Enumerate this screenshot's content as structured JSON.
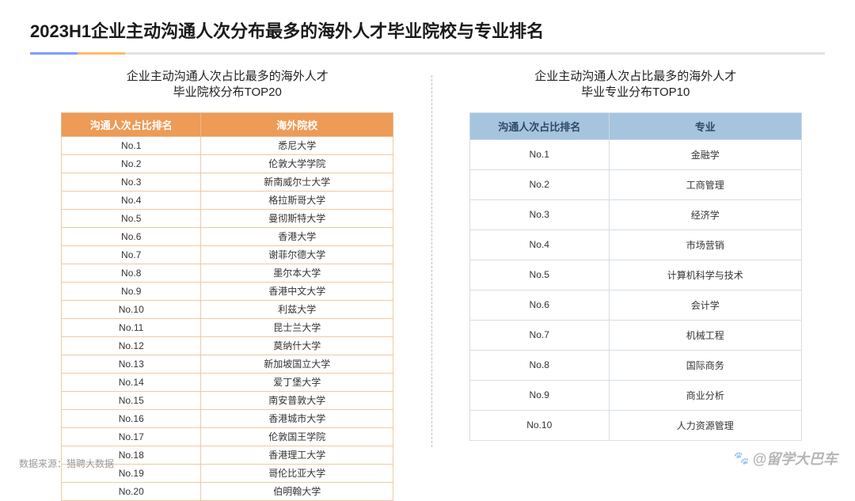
{
  "title": "2023H1企业主动沟通人次分布最多的海外人才毕业院校与专业排名",
  "source_label": "数据来源：猎聘大数据",
  "watermark": "@留学大巴车",
  "colors": {
    "left_header_bg": "#ed9b56",
    "left_border": "#f1c9a2",
    "right_header_bg": "#a7c4de",
    "right_border": "#d7dee6",
    "title_accent_blue": "#2d5bff",
    "title_accent_orange": "#ff8a00"
  },
  "left": {
    "title_l1": "企业主动沟通人次占比最多的海外人才",
    "title_l2": "毕业院校分布TOP20",
    "col_rank": "沟通人次占比排名",
    "col_name": "海外院校",
    "rows": [
      {
        "rank": "No.1",
        "name": "悉尼大学"
      },
      {
        "rank": "No.2",
        "name": "伦敦大学学院"
      },
      {
        "rank": "No.3",
        "name": "新南威尔士大学"
      },
      {
        "rank": "No.4",
        "name": "格拉斯哥大学"
      },
      {
        "rank": "No.5",
        "name": "曼彻斯特大学"
      },
      {
        "rank": "No.6",
        "name": "香港大学"
      },
      {
        "rank": "No.7",
        "name": "谢菲尔德大学"
      },
      {
        "rank": "No.8",
        "name": "墨尔本大学"
      },
      {
        "rank": "No.9",
        "name": "香港中文大学"
      },
      {
        "rank": "No.10",
        "name": "利兹大学"
      },
      {
        "rank": "No.11",
        "name": "昆士兰大学"
      },
      {
        "rank": "No.12",
        "name": "莫纳什大学"
      },
      {
        "rank": "No.13",
        "name": "新加坡国立大学"
      },
      {
        "rank": "No.14",
        "name": "爱丁堡大学"
      },
      {
        "rank": "No.15",
        "name": "南安普敦大学"
      },
      {
        "rank": "No.16",
        "name": "香港城市大学"
      },
      {
        "rank": "No.17",
        "name": "伦敦国王学院"
      },
      {
        "rank": "No.18",
        "name": "香港理工大学"
      },
      {
        "rank": "No.19",
        "name": "哥伦比亚大学"
      },
      {
        "rank": "No.20",
        "name": "伯明翰大学"
      }
    ]
  },
  "right": {
    "title_l1": "企业主动沟通人次占比最多的海外人才",
    "title_l2": "毕业专业分布TOP10",
    "col_rank": "沟通人次占比排名",
    "col_name": "专业",
    "rows": [
      {
        "rank": "No.1",
        "name": "金融学"
      },
      {
        "rank": "No.2",
        "name": "工商管理"
      },
      {
        "rank": "No.3",
        "name": "经济学"
      },
      {
        "rank": "No.4",
        "name": "市场营销"
      },
      {
        "rank": "No.5",
        "name": "计算机科学与技术"
      },
      {
        "rank": "No.6",
        "name": "会计学"
      },
      {
        "rank": "No.7",
        "name": "机械工程"
      },
      {
        "rank": "No.8",
        "name": "国际商务"
      },
      {
        "rank": "No.9",
        "name": "商业分析"
      },
      {
        "rank": "No.10",
        "name": "人力资源管理"
      }
    ]
  }
}
